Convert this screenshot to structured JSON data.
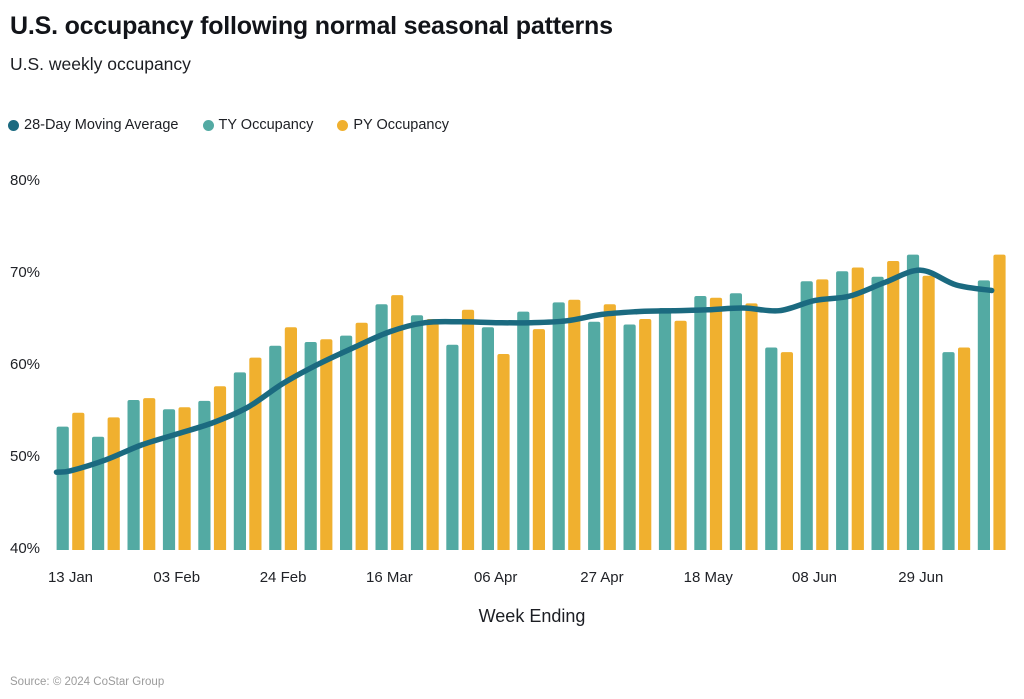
{
  "footer": {
    "source": "Source: © 2024 CoStar Group"
  },
  "chart_data": {
    "type": "bar",
    "title": "U.S. occupancy following normal seasonal patterns",
    "subtitle": "U.S. weekly occupancy",
    "x_axis_label": "Week Ending",
    "y_axis_range": [
      40,
      80
    ],
    "y_unit": "%",
    "grid": false,
    "legend_position": "top-left",
    "weeks_count": 27,
    "x_tick_labels": [
      {
        "week_index": 0,
        "label": "13 Jan"
      },
      {
        "week_index": 3,
        "label": "03 Feb"
      },
      {
        "week_index": 6,
        "label": "24 Feb"
      },
      {
        "week_index": 9,
        "label": "16 Mar"
      },
      {
        "week_index": 12,
        "label": "06 Apr"
      },
      {
        "week_index": 15,
        "label": "27 Apr"
      },
      {
        "week_index": 18,
        "label": "18 May"
      },
      {
        "week_index": 21,
        "label": "08 Jun"
      },
      {
        "week_index": 24,
        "label": "29 Jun"
      }
    ],
    "y_ticks": [
      {
        "value": 80,
        "label": "80%"
      },
      {
        "value": 70,
        "label": "70%"
      },
      {
        "value": 60,
        "label": "60%"
      },
      {
        "value": 50,
        "label": "50%"
      },
      {
        "value": 40,
        "label": "40%"
      }
    ],
    "series": [
      {
        "name": "28-Day Moving Average",
        "type": "line",
        "color": "#1b6a80",
        "values": [
          48.5,
          49.7,
          51.3,
          52.5,
          53.7,
          55.4,
          58.0,
          60.1,
          61.9,
          63.6,
          64.6,
          64.7,
          64.6,
          64.6,
          64.8,
          65.5,
          65.8,
          65.9,
          66.0,
          66.2,
          65.9,
          67.0,
          67.5,
          69.0,
          70.3,
          68.7,
          68.1
        ]
      },
      {
        "name": "TY Occupancy",
        "type": "bar",
        "color": "#53aaa3",
        "values": [
          53.3,
          52.2,
          56.2,
          55.2,
          56.1,
          59.2,
          62.1,
          62.5,
          63.2,
          66.6,
          65.4,
          62.2,
          64.1,
          65.8,
          66.8,
          64.7,
          64.4,
          66.2,
          67.5,
          67.8,
          61.9,
          69.1,
          70.2,
          69.6,
          72.0,
          61.4,
          69.2
        ]
      },
      {
        "name": "PY Occupancy",
        "type": "bar",
        "color": "#f0b02f",
        "values": [
          54.8,
          54.3,
          56.4,
          55.4,
          57.7,
          60.8,
          64.1,
          62.8,
          64.6,
          67.6,
          65.0,
          66.0,
          61.2,
          63.9,
          67.1,
          66.6,
          65.0,
          64.8,
          67.3,
          66.7,
          61.4,
          69.3,
          70.6,
          71.3,
          69.7,
          61.9,
          72.0
        ]
      }
    ]
  }
}
